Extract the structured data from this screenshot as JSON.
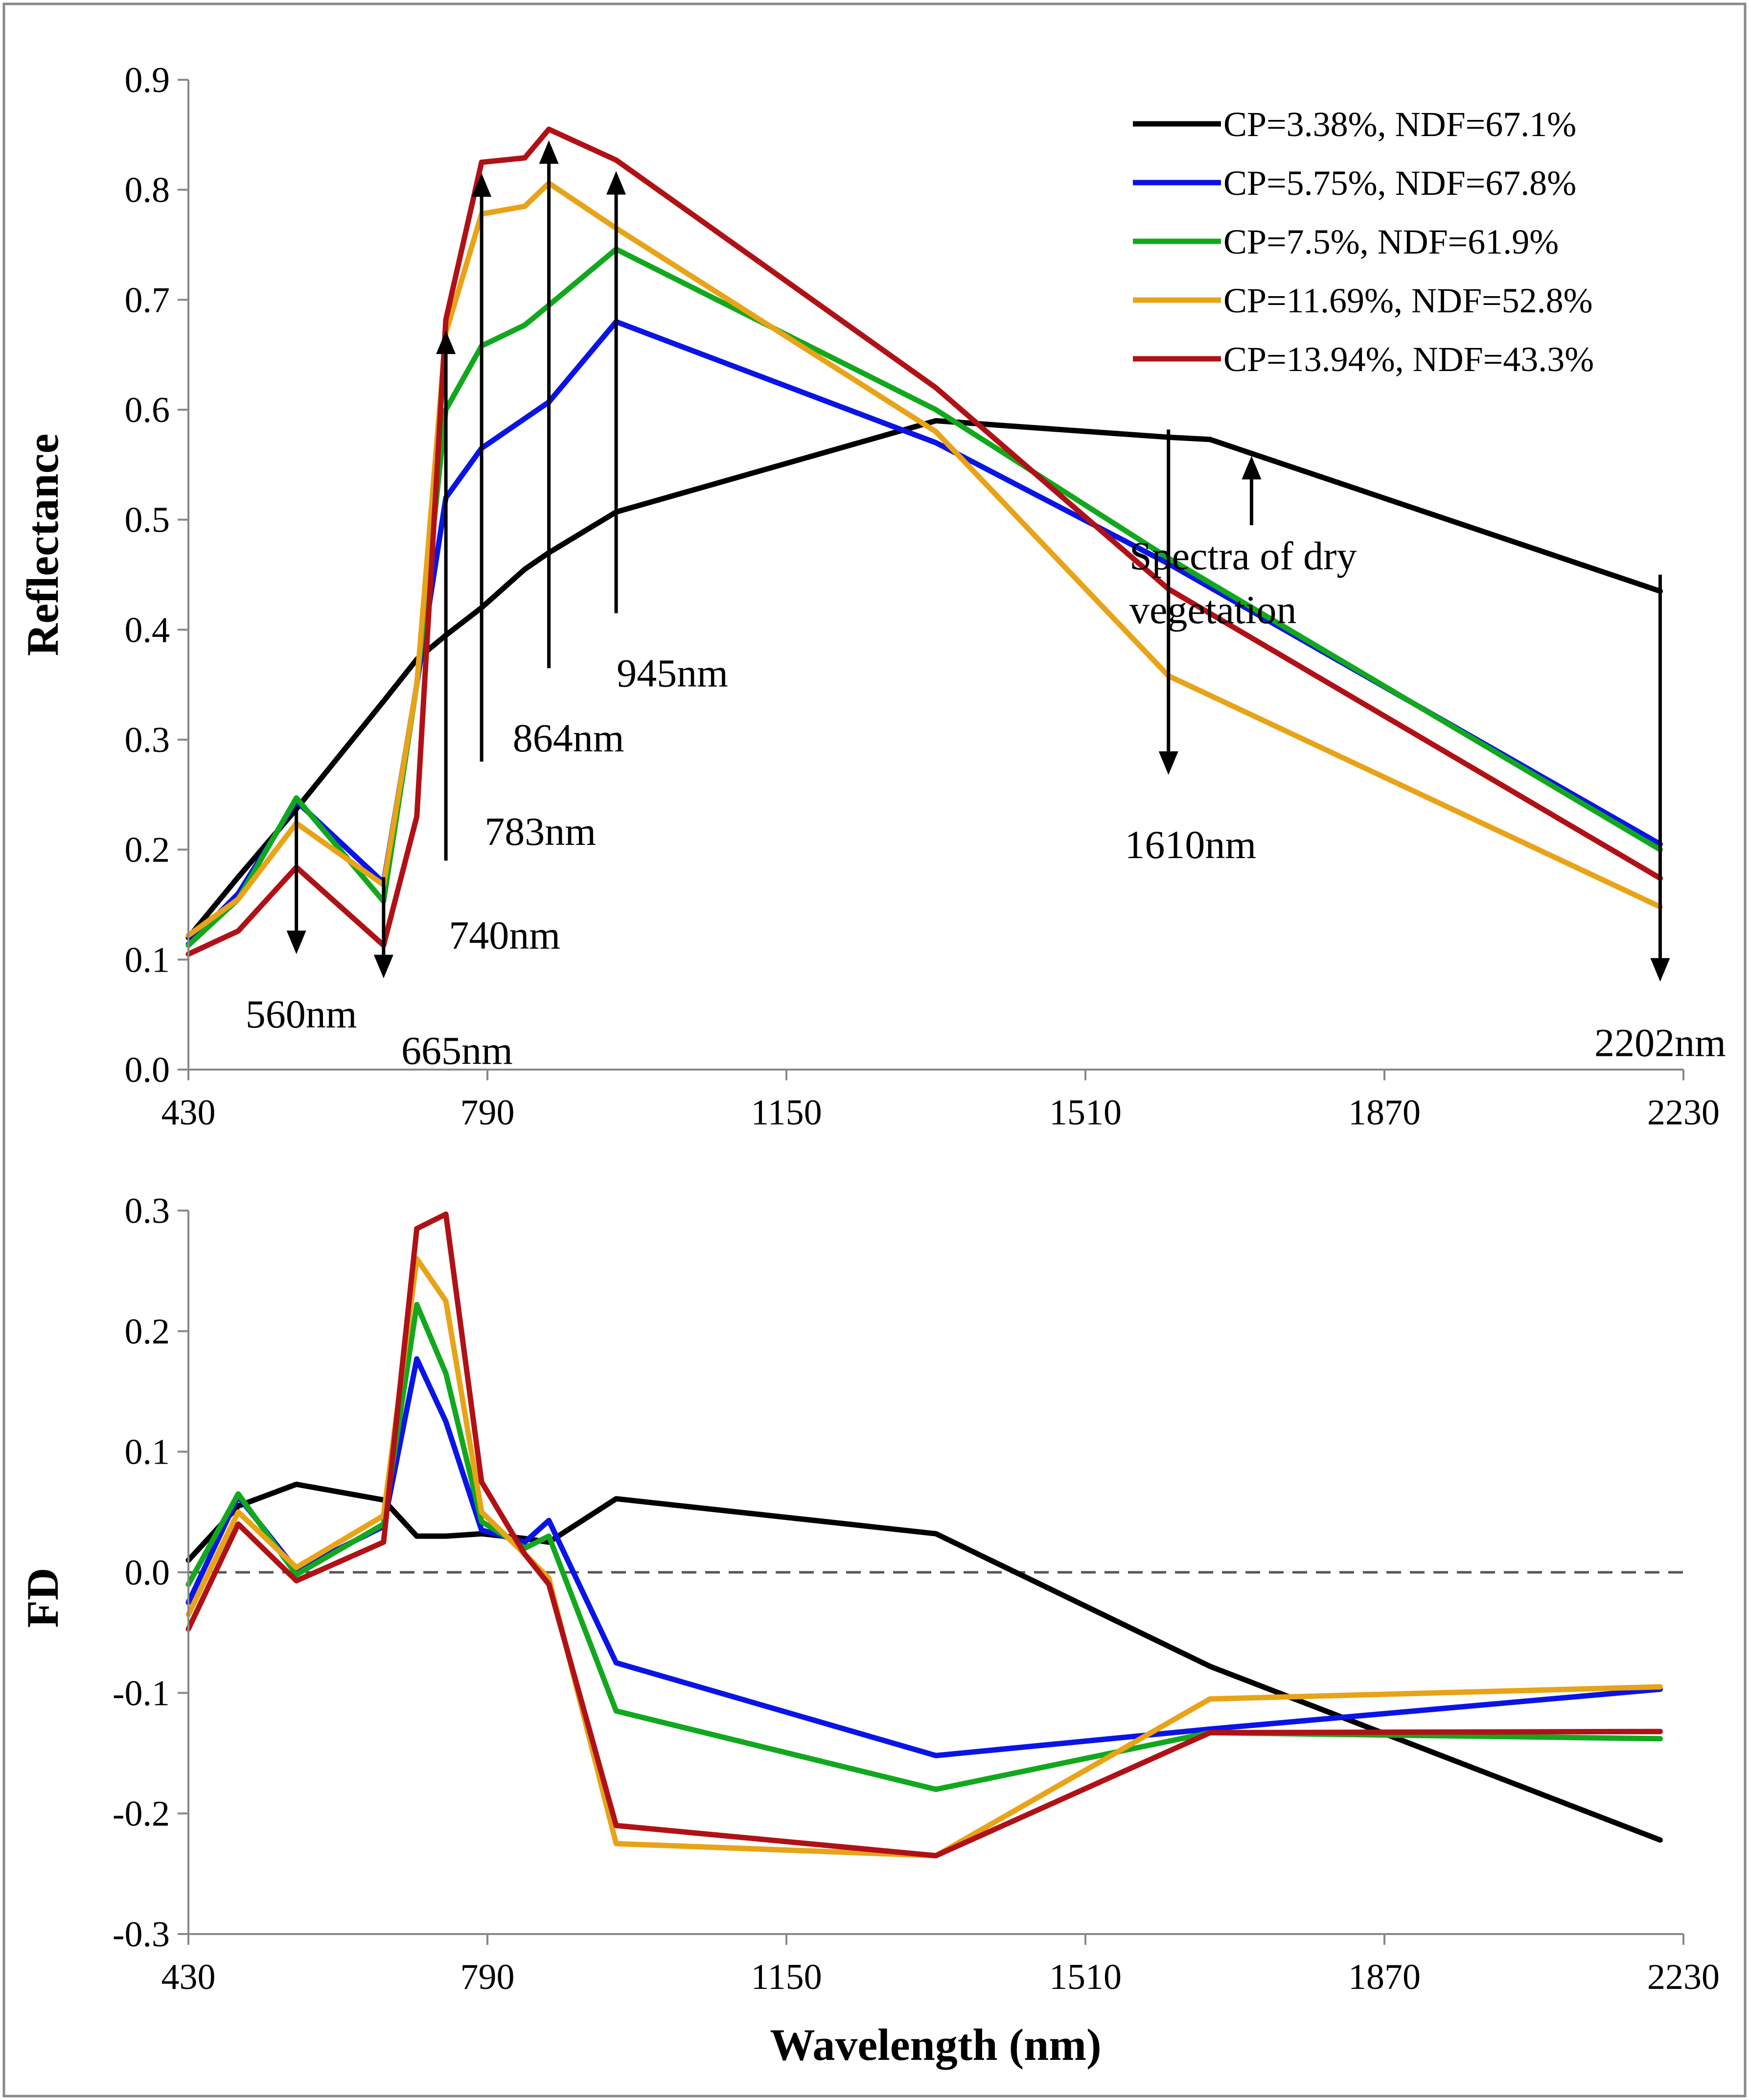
{
  "figure": {
    "border_color": "#888888",
    "series_colors": {
      "black": "#000000",
      "blue": "#0a14e6",
      "green": "#12a81e",
      "orange": "#e8a317",
      "red": "#b01116"
    }
  },
  "chart_data": [
    {
      "type": "line",
      "ylabel": "Reflectance",
      "xlabel": "",
      "xlim": [
        430,
        2230
      ],
      "ylim": [
        0.0,
        0.9
      ],
      "xticks": [
        "430",
        "790",
        "1150",
        "1510",
        "1870",
        "2230"
      ],
      "yticks": [
        "0.0",
        "0.1",
        "0.2",
        "0.3",
        "0.4",
        "0.5",
        "0.6",
        "0.7",
        "0.8",
        "0.9"
      ],
      "series": [
        {
          "name": "CP=3.38%, NDF=67.1%",
          "color": "#000000",
          "x": [
            430,
            490,
            560,
            665,
            705,
            740,
            783,
            835,
            864,
            945,
            1330,
            1610,
            1660,
            2202
          ],
          "y": [
            0.12,
            0.175,
            0.237,
            0.335,
            0.373,
            0.395,
            0.42,
            0.455,
            0.47,
            0.507,
            0.59,
            0.575,
            0.573,
            0.435
          ]
        },
        {
          "name": "CP=5.75%, NDF=67.8%",
          "color": "#0a14e6",
          "x": [
            430,
            490,
            560,
            665,
            705,
            740,
            783,
            835,
            864,
            945,
            1330,
            1610,
            2202
          ],
          "y": [
            0.114,
            0.16,
            0.244,
            0.17,
            0.35,
            0.52,
            0.565,
            0.592,
            0.607,
            0.68,
            0.57,
            0.46,
            0.205
          ]
        },
        {
          "name": "CP=7.5%, NDF=61.9%",
          "color": "#12a81e",
          "x": [
            430,
            490,
            560,
            665,
            705,
            740,
            783,
            835,
            864,
            945,
            1330,
            1610,
            2202
          ],
          "y": [
            0.113,
            0.155,
            0.247,
            0.153,
            0.35,
            0.6,
            0.658,
            0.677,
            0.695,
            0.746,
            0.6,
            0.465,
            0.2
          ]
        },
        {
          "name": "CP=11.69%, NDF=52.8%",
          "color": "#e8a317",
          "x": [
            430,
            490,
            560,
            665,
            705,
            740,
            783,
            835,
            864,
            945,
            1330,
            1610,
            2202
          ],
          "y": [
            0.122,
            0.155,
            0.224,
            0.168,
            0.35,
            0.67,
            0.778,
            0.785,
            0.806,
            0.765,
            0.58,
            0.358,
            0.148
          ]
        },
        {
          "name": "CP=13.94%, NDF=43.3%",
          "color": "#b01116",
          "x": [
            430,
            490,
            560,
            665,
            705,
            740,
            783,
            835,
            864,
            945,
            1330,
            1610,
            2202
          ],
          "y": [
            0.105,
            0.126,
            0.184,
            0.113,
            0.23,
            0.682,
            0.825,
            0.829,
            0.855,
            0.827,
            0.62,
            0.437,
            0.174
          ]
        }
      ],
      "annotations": [
        {
          "text": "560nm",
          "x": 560,
          "arrow": "down",
          "y_from": 0.235,
          "y_to": 0.105
        },
        {
          "text": "665nm",
          "x": 665,
          "arrow": "down",
          "y_from": 0.175,
          "y_to": 0.083
        },
        {
          "text": "740nm",
          "x": 740,
          "arrow": "up",
          "y_from": 0.19,
          "y_to": 0.672
        },
        {
          "text": "783nm",
          "x": 783,
          "arrow": "up",
          "y_from": 0.28,
          "y_to": 0.815
        },
        {
          "text": "864nm",
          "x": 864,
          "arrow": "up",
          "y_from": 0.365,
          "y_to": 0.845
        },
        {
          "text": "945nm",
          "x": 945,
          "arrow": "up",
          "y_from": 0.415,
          "y_to": 0.817
        },
        {
          "text": "1610nm",
          "x": 1610,
          "arrow": "down",
          "y_from": 0.582,
          "y_to": 0.268
        },
        {
          "text": "2202nm",
          "x": 2202,
          "arrow": "down",
          "y_from": 0.45,
          "y_to": 0.08
        }
      ],
      "note": {
        "lines": [
          "Spectra of dry",
          "vegetation"
        ],
        "arrow_x": 1710,
        "arrow_from": 0.495,
        "arrow_to": 0.558
      },
      "legend_position": "top-right"
    },
    {
      "type": "line",
      "ylabel": "FD",
      "xlabel": "Wavelength (nm)",
      "xlim": [
        430,
        2230
      ],
      "ylim": [
        -0.3,
        0.3
      ],
      "xticks": [
        "430",
        "790",
        "1150",
        "1510",
        "1870",
        "2230"
      ],
      "yticks": [
        "-0.3",
        "-0.2",
        "-0.1",
        "0.0",
        "0.1",
        "0.2",
        "0.3"
      ],
      "zero_line": true,
      "series": [
        {
          "name": "CP=3.38%, NDF=67.1%",
          "color": "#000000",
          "x": [
            430,
            490,
            560,
            665,
            705,
            740,
            783,
            835,
            864,
            945,
            1330,
            1660,
            2202
          ],
          "y": [
            0.01,
            0.055,
            0.073,
            0.06,
            0.03,
            0.03,
            0.032,
            0.028,
            0.025,
            0.061,
            0.032,
            -0.078,
            -0.222
          ]
        },
        {
          "name": "CP=5.75%, NDF=67.8%",
          "color": "#0a14e6",
          "x": [
            430,
            490,
            560,
            665,
            705,
            740,
            783,
            835,
            864,
            945,
            1330,
            1660,
            2202
          ],
          "y": [
            -0.025,
            0.063,
            0.002,
            0.038,
            0.177,
            0.125,
            0.035,
            0.025,
            0.043,
            -0.075,
            -0.152,
            -0.13,
            -0.097
          ]
        },
        {
          "name": "CP=7.5%, NDF=61.9%",
          "color": "#12a81e",
          "x": [
            430,
            490,
            560,
            665,
            705,
            740,
            783,
            835,
            864,
            945,
            1330,
            1660,
            2202
          ],
          "y": [
            -0.01,
            0.065,
            -0.002,
            0.04,
            0.222,
            0.165,
            0.042,
            0.02,
            0.03,
            -0.115,
            -0.18,
            -0.133,
            -0.138
          ]
        },
        {
          "name": "CP=11.69%, NDF=52.8%",
          "color": "#e8a317",
          "x": [
            430,
            490,
            560,
            665,
            705,
            740,
            783,
            835,
            864,
            945,
            1330,
            1660,
            2202
          ],
          "y": [
            -0.035,
            0.05,
            0.004,
            0.047,
            0.26,
            0.225,
            0.05,
            0.015,
            -0.005,
            -0.225,
            -0.235,
            -0.105,
            -0.095
          ]
        },
        {
          "name": "CP=13.94%, NDF=43.3%",
          "color": "#b01116",
          "x": [
            430,
            490,
            560,
            665,
            705,
            740,
            783,
            835,
            864,
            945,
            1330,
            1660,
            2202
          ],
          "y": [
            -0.047,
            0.04,
            -0.007,
            0.025,
            0.285,
            0.297,
            0.075,
            0.015,
            -0.01,
            -0.21,
            -0.235,
            -0.133,
            -0.132
          ]
        }
      ]
    }
  ]
}
